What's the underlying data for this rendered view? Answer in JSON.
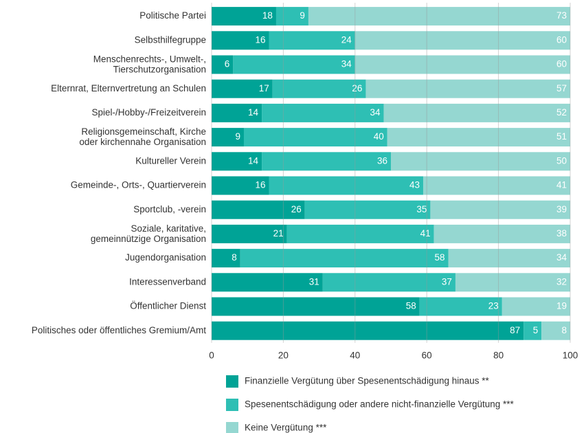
{
  "chart_data": {
    "type": "stacked_bar_horizontal",
    "categories": [
      "Politische Partei",
      "Selbsthilfegruppe",
      "Menschenrechts-, Umwelt-,\nTierschutzorganisation",
      "Elternrat, Elternvertretung an Schulen",
      "Spiel-/Hobby-/Freizeitverein",
      "Religionsgemeinschaft, Kirche\noder kirchennahe Organisation",
      "Kultureller Verein",
      "Gemeinde-, Orts-, Quartierverein",
      "Sportclub, -verein",
      "Soziale, karitative,\ngemeinnützige Organisation",
      "Jugendorganisation",
      "Interessenverband",
      "Öffentlicher Dienst",
      "Politisches oder öffentliches Gremium/Amt"
    ],
    "series": [
      {
        "name": "Finanzielle Vergütung über Spesenentschädigung hinaus **",
        "color": "#00a396",
        "values": [
          18,
          16,
          6,
          17,
          14,
          9,
          14,
          16,
          26,
          21,
          8,
          31,
          58,
          87
        ]
      },
      {
        "name": "Spesenentschädigung oder andere nicht-finanzielle Vergütung ***",
        "color": "#2ebfb4",
        "values": [
          9,
          24,
          34,
          26,
          34,
          40,
          36,
          43,
          35,
          41,
          58,
          37,
          23,
          5
        ]
      },
      {
        "name": "Keine Vergütung ***",
        "color": "#95d7d1",
        "values": [
          73,
          60,
          60,
          57,
          52,
          51,
          50,
          41,
          39,
          38,
          34,
          32,
          19,
          8
        ]
      }
    ],
    "xlim": [
      0,
      100
    ],
    "xticks": [
      0,
      20,
      40,
      60,
      80,
      100
    ],
    "grid": true
  }
}
